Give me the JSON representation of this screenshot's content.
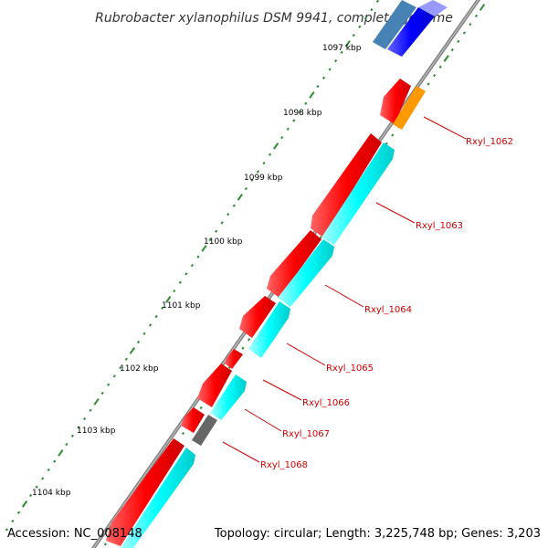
{
  "title": "Rubrobacter xylanophilus DSM 9941, complete genome",
  "footer": {
    "accession": "Accession: NC_008148",
    "summary": "Topology: circular; Length: 3,225,748 bp; Genes: 3,203"
  },
  "colors": {
    "backbone": "#808080",
    "tick": "#2e8b2e",
    "label": "#cc0000",
    "cds_forward": "#ff0000",
    "cds_reverse": "#00ffff",
    "rna": "#ff9900",
    "gap": "#666666",
    "other_blue": "#0000ff",
    "other_steel": "#4682b4"
  },
  "scale_markers": [
    "1097 kbp",
    "1098 kbp",
    "1099 kbp",
    "1100 kbp",
    "1101 kbp",
    "1102 kbp",
    "1103 kbp",
    "1104 kbp"
  ],
  "gene_labels": [
    "Rxyl_1062",
    "Rxyl_1063",
    "Rxyl_1064",
    "Rxyl_1065",
    "Rxyl_1066",
    "Rxyl_1067",
    "Rxyl_1068"
  ]
}
